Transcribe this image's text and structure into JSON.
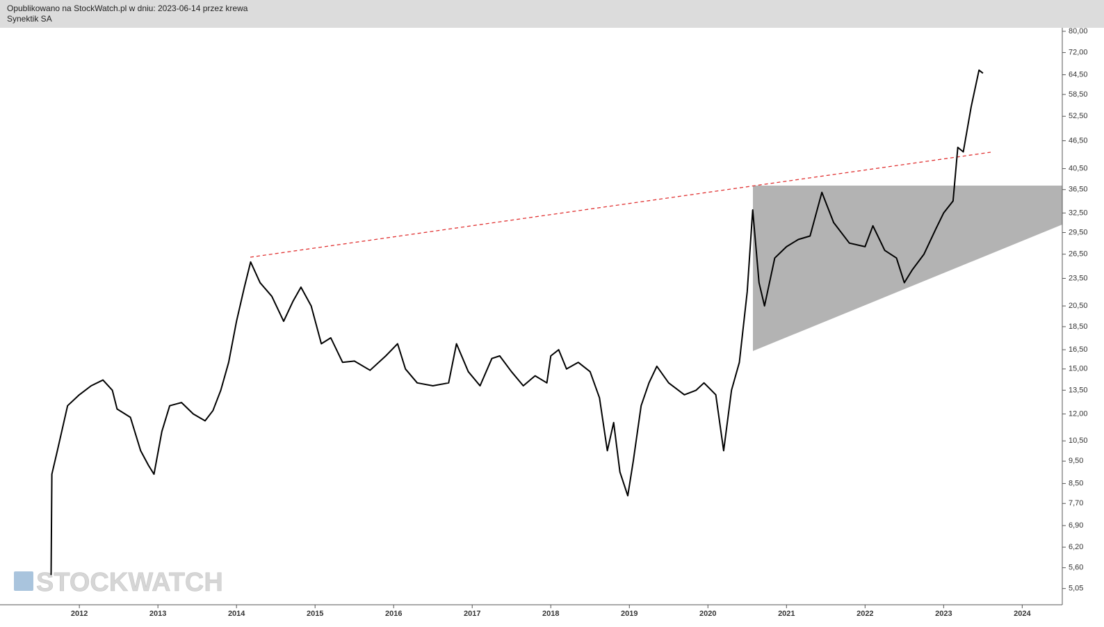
{
  "header": {
    "title": "Opublikowano na StockWatch.pl w dniu: 2023-06-14 przez krewa",
    "subtitle": "Synektik SA"
  },
  "chart_data": {
    "type": "line",
    "title": "Synektik SA",
    "watermark": "STOCKWATCH",
    "color": "#000000",
    "log_scale": true,
    "x": [
      2011.64,
      2011.65,
      2011.72,
      2011.85,
      2012.0,
      2012.15,
      2012.3,
      2012.42,
      2012.48,
      2012.65,
      2012.78,
      2012.88,
      2012.95,
      2013.05,
      2013.15,
      2013.3,
      2013.45,
      2013.6,
      2013.7,
      2013.8,
      2013.9,
      2014.0,
      2014.1,
      2014.18,
      2014.3,
      2014.45,
      2014.6,
      2014.72,
      2014.82,
      2014.95,
      2015.08,
      2015.2,
      2015.35,
      2015.5,
      2015.7,
      2015.9,
      2016.05,
      2016.15,
      2016.3,
      2016.5,
      2016.7,
      2016.8,
      2016.95,
      2017.1,
      2017.25,
      2017.35,
      2017.5,
      2017.65,
      2017.8,
      2017.95,
      2018.0,
      2018.1,
      2018.2,
      2018.35,
      2018.5,
      2018.62,
      2018.72,
      2018.8,
      2018.88,
      2018.98,
      2019.05,
      2019.15,
      2019.25,
      2019.35,
      2019.5,
      2019.7,
      2019.85,
      2019.95,
      2020.1,
      2020.2,
      2020.3,
      2020.4,
      2020.5,
      2020.57,
      2020.65,
      2020.72,
      2020.85,
      2021.0,
      2021.15,
      2021.3,
      2021.45,
      2021.6,
      2021.8,
      2022.0,
      2022.1,
      2022.25,
      2022.4,
      2022.5,
      2022.6,
      2022.75,
      2022.9,
      2023.0,
      2023.12,
      2023.18,
      2023.25,
      2023.35,
      2023.45,
      2023.5
    ],
    "values": [
      5.4,
      8.9,
      10.0,
      12.5,
      13.2,
      13.8,
      14.2,
      13.5,
      12.3,
      11.8,
      10.0,
      9.3,
      8.9,
      11.0,
      12.5,
      12.7,
      12.0,
      11.6,
      12.2,
      13.5,
      15.5,
      19.0,
      22.5,
      25.5,
      23.0,
      21.5,
      19.0,
      21.0,
      22.5,
      20.5,
      17.0,
      17.5,
      15.5,
      15.6,
      14.9,
      16.0,
      17.0,
      15.0,
      14.0,
      13.8,
      14.0,
      17.0,
      14.8,
      13.8,
      15.8,
      16.0,
      14.8,
      13.8,
      14.5,
      14.0,
      16.0,
      16.5,
      15.0,
      15.5,
      14.8,
      13.0,
      10.0,
      11.5,
      9.0,
      8.0,
      9.5,
      12.5,
      14.0,
      15.2,
      14.0,
      13.2,
      13.5,
      14.0,
      13.2,
      10.0,
      13.5,
      15.5,
      22.0,
      33.0,
      23.0,
      20.5,
      26.0,
      27.5,
      28.5,
      29.0,
      36.0,
      31.0,
      28.0,
      27.5,
      30.5,
      27.0,
      26.0,
      23.0,
      24.5,
      26.5,
      30.0,
      32.5,
      34.5,
      45.0,
      44.0,
      55.0,
      66.0,
      65.0
    ],
    "xlim": [
      2010.99,
      2024.51
    ],
    "xticks": [
      2012,
      2013,
      2014,
      2015,
      2016,
      2017,
      2018,
      2019,
      2020,
      2021,
      2022,
      2023,
      2024
    ],
    "ylim": [
      4.66,
      81.4
    ],
    "yticks": [
      {
        "value": 80,
        "label": "80,00"
      },
      {
        "value": 72,
        "label": "72,00"
      },
      {
        "value": 64.5,
        "label": "64,50"
      },
      {
        "value": 58.5,
        "label": "58,50"
      },
      {
        "value": 52.5,
        "label": "52,50"
      },
      {
        "value": 46.5,
        "label": "46,50"
      },
      {
        "value": 40.5,
        "label": "40,50"
      },
      {
        "value": 36.5,
        "label": "36,50"
      },
      {
        "value": 32.5,
        "label": "32,50"
      },
      {
        "value": 29.5,
        "label": "29,50"
      },
      {
        "value": 26.5,
        "label": "26,50"
      },
      {
        "value": 23.5,
        "label": "23,50"
      },
      {
        "value": 20.5,
        "label": "20,50"
      },
      {
        "value": 18.5,
        "label": "18,50"
      },
      {
        "value": 16.5,
        "label": "16,50"
      },
      {
        "value": 15,
        "label": "15,00"
      },
      {
        "value": 13.5,
        "label": "13,50"
      },
      {
        "value": 12,
        "label": "12,00"
      },
      {
        "value": 10.5,
        "label": "10,50"
      },
      {
        "value": 9.5,
        "label": "9,50"
      },
      {
        "value": 8.5,
        "label": "8,50"
      },
      {
        "value": 7.7,
        "label": "7,70"
      },
      {
        "value": 6.9,
        "label": "6,90"
      },
      {
        "value": 6.2,
        "label": "6,20"
      },
      {
        "value": 5.6,
        "label": "5,60"
      },
      {
        "value": 5.05,
        "label": "5,05"
      }
    ]
  }
}
